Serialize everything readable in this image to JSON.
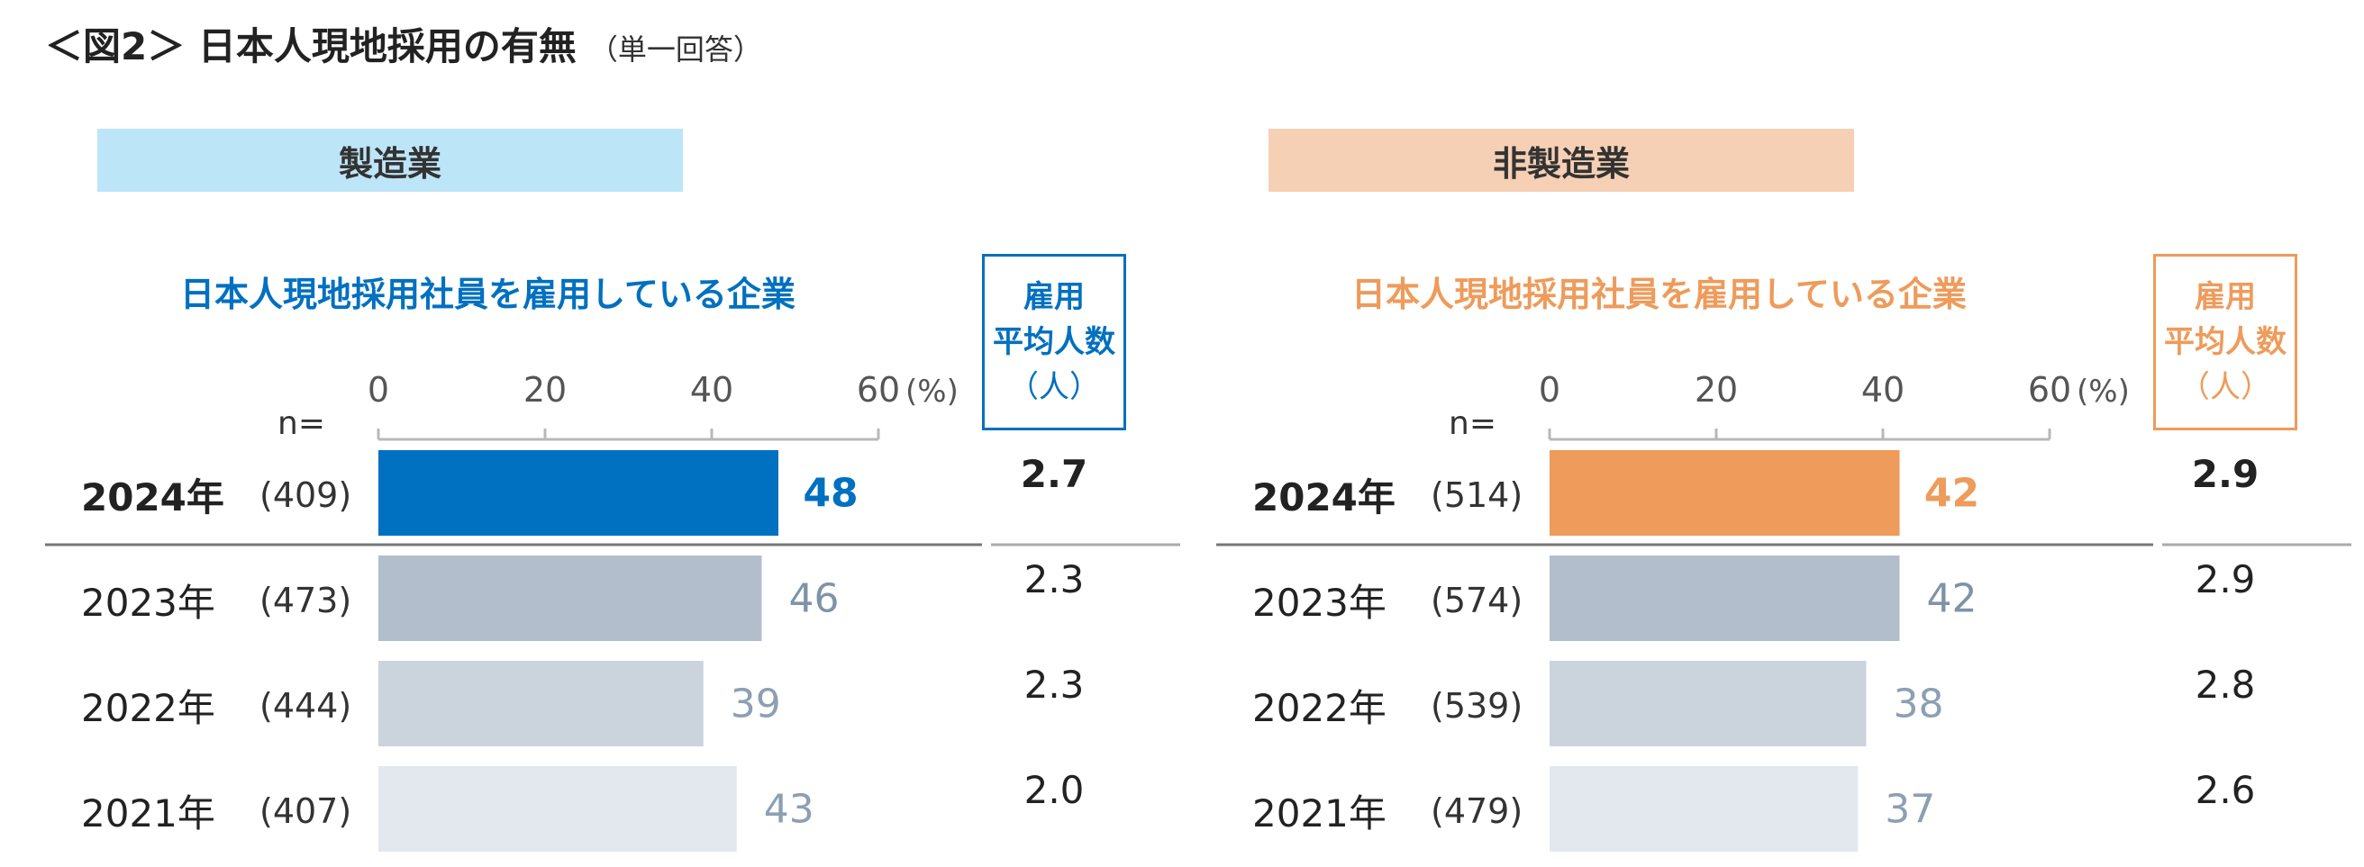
{
  "title": {
    "main": "＜図2＞ 日本人現地採用の有無",
    "note": "（単一回答）"
  },
  "axis": {
    "ticks": [
      "0",
      "20",
      "40",
      "60"
    ],
    "max": 60,
    "unit": "(%)",
    "n_label": "n="
  },
  "panels": [
    {
      "header": "製造業",
      "header_bg": "#bde5f8",
      "accent": "#0070c0",
      "subtitle": "日本人現地採用社員を雇用している企業",
      "avg_box": {
        "line1": "雇用",
        "line2": "平均人数",
        "unit": "（人）"
      },
      "rows": [
        {
          "year": "2024年",
          "n": "(409)",
          "value": 48,
          "label": "48",
          "avg": "2.7",
          "color": "#0070c0",
          "label_color": "#0070c0"
        },
        {
          "year": "2023年",
          "n": "(473)",
          "value": 46,
          "label": "46",
          "avg": "2.3",
          "color": "#b2becb",
          "label_color": "#7f93a8"
        },
        {
          "year": "2022年",
          "n": "(444)",
          "value": 39,
          "label": "39",
          "avg": "2.3",
          "color": "#cbd3dd",
          "label_color": "#8c9fb3"
        },
        {
          "year": "2021年",
          "n": "(407)",
          "value": 43,
          "label": "43",
          "avg": "2.0",
          "color": "#e3e8ee",
          "label_color": "#8c9fb3"
        }
      ]
    },
    {
      "header": "非製造業",
      "header_bg": "#f6d0b4",
      "accent": "#ee9b5b",
      "subtitle": "日本人現地採用社員を雇用している企業",
      "avg_box": {
        "line1": "雇用",
        "line2": "平均人数",
        "unit": "（人）"
      },
      "rows": [
        {
          "year": "2024年",
          "n": "(514)",
          "value": 42,
          "label": "42",
          "avg": "2.9",
          "color": "#ee9b5b",
          "label_color": "#ee9b5b"
        },
        {
          "year": "2023年",
          "n": "(574)",
          "value": 42,
          "label": "42",
          "avg": "2.9",
          "color": "#b2becb",
          "label_color": "#7f93a8"
        },
        {
          "year": "2022年",
          "n": "(539)",
          "value": 38,
          "label": "38",
          "avg": "2.8",
          "color": "#cbd3dd",
          "label_color": "#8c9fb3"
        },
        {
          "year": "2021年",
          "n": "(479)",
          "value": 37,
          "label": "37",
          "avg": "2.6",
          "color": "#e3e8ee",
          "label_color": "#8c9fb3"
        }
      ]
    }
  ],
  "chart_data": [
    {
      "type": "bar",
      "title": "製造業",
      "subtitle": "日本人現地採用社員を雇用している企業",
      "categories": [
        "2024年",
        "2023年",
        "2022年",
        "2021年"
      ],
      "n": [
        "(409)",
        "(473)",
        "(444)",
        "(407)"
      ],
      "values": [
        48,
        46,
        39,
        43
      ],
      "avg_employees": [
        2.7,
        2.3,
        2.3,
        2.0
      ],
      "xlabel": "(%)",
      "xlim": [
        0,
        60
      ],
      "orientation": "horizontal"
    },
    {
      "type": "bar",
      "title": "非製造業",
      "subtitle": "日本人現地採用社員を雇用している企業",
      "categories": [
        "2024年",
        "2023年",
        "2022年",
        "2021年"
      ],
      "n": [
        "(514)",
        "(574)",
        "(539)",
        "(479)"
      ],
      "values": [
        42,
        42,
        38,
        37
      ],
      "avg_employees": [
        2.9,
        2.9,
        2.8,
        2.6
      ],
      "xlabel": "(%)",
      "xlim": [
        0,
        60
      ],
      "orientation": "horizontal"
    }
  ]
}
